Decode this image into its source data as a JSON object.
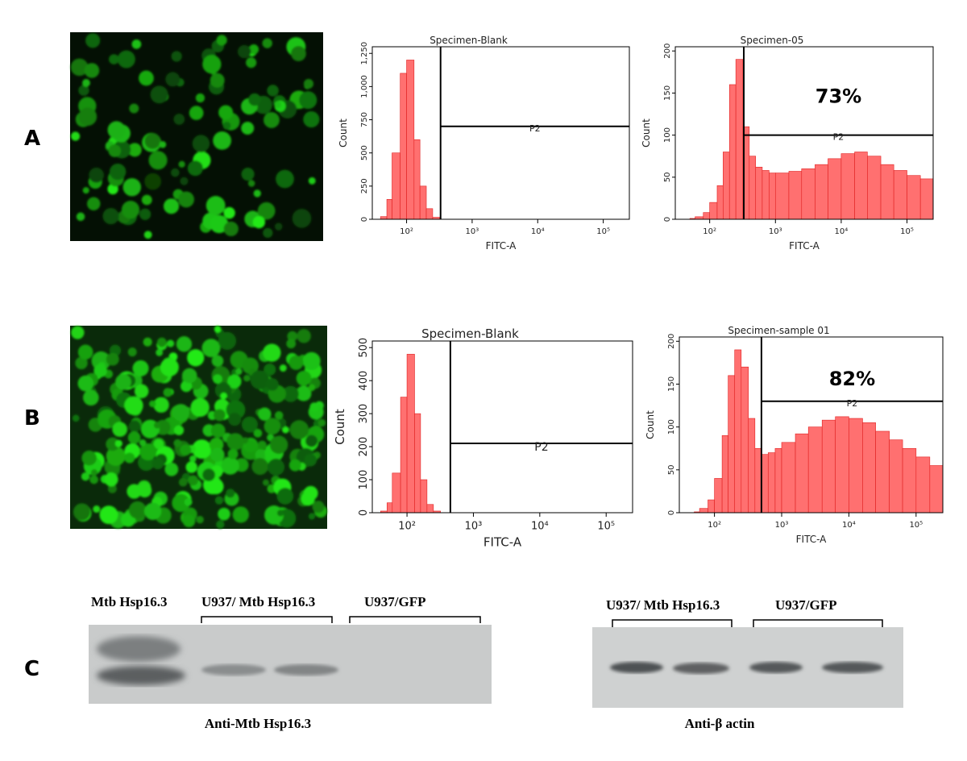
{
  "panel_labels": [
    "A",
    "B",
    "C"
  ],
  "chart_data": [
    {
      "type": "histogram",
      "title": "Specimen-Blank",
      "xlabel": "FITC-A",
      "ylabel": "Count",
      "color": "#ff7070",
      "log_x": true,
      "bins": [
        30,
        40,
        50,
        60,
        80,
        100,
        130,
        160,
        200,
        250,
        320,
        400,
        500,
        630,
        800,
        1000,
        1600,
        2500,
        4000,
        6300,
        10000,
        16000,
        25000,
        40000,
        63000,
        100000,
        160000,
        250000
      ],
      "counts": [
        0,
        20,
        150,
        500,
        1100,
        1200,
        600,
        250,
        80,
        15,
        0,
        0,
        0,
        0,
        0,
        0,
        0,
        0,
        0,
        0,
        0,
        0,
        0,
        0,
        0,
        0,
        0
      ],
      "xlim": [
        30,
        250000
      ],
      "ylim": [
        0,
        1300
      ],
      "xticks": [
        {
          "value": 100,
          "label": "10²"
        },
        {
          "value": 1000,
          "label": "10³"
        },
        {
          "value": 10000,
          "label": "10⁴"
        },
        {
          "value": 100000,
          "label": "10⁵"
        }
      ],
      "yticks": [
        0,
        250,
        500,
        750,
        {
          "value": 1000,
          "label": "1,000"
        },
        {
          "value": 1250,
          "label": "1,250"
        }
      ],
      "gate": {
        "x": 330,
        "y": 700,
        "label": "P2"
      }
    },
    {
      "type": "histogram",
      "title": "Specimen-05",
      "xlabel": "FITC-A",
      "ylabel": "Count",
      "color": "#ff7070",
      "log_x": true,
      "bins": [
        30,
        40,
        50,
        60,
        80,
        100,
        130,
        160,
        200,
        250,
        320,
        400,
        500,
        630,
        800,
        1000,
        1600,
        2500,
        4000,
        6300,
        10000,
        16000,
        25000,
        40000,
        63000,
        100000,
        160000,
        250000
      ],
      "counts": [
        0,
        0,
        1,
        3,
        8,
        20,
        40,
        80,
        160,
        190,
        110,
        75,
        62,
        58,
        55,
        55,
        57,
        60,
        65,
        72,
        78,
        80,
        75,
        65,
        58,
        52,
        48
      ],
      "xlim": [
        30,
        250000
      ],
      "ylim": [
        0,
        205
      ],
      "xticks": [
        {
          "value": 100,
          "label": "10²"
        },
        {
          "value": 1000,
          "label": "10³"
        },
        {
          "value": 10000,
          "label": "10⁴"
        },
        {
          "value": 100000,
          "label": "10⁵"
        }
      ],
      "yticks": [
        0,
        50,
        100,
        150,
        200
      ],
      "gate": {
        "x": 330,
        "y": 100,
        "label": "P2"
      },
      "annotation": "73%"
    },
    {
      "type": "histogram",
      "title": "Specimen-Blank",
      "xlabel": "FITC-A",
      "ylabel": "Count",
      "color": "#ff7070",
      "log_x": true,
      "bins": [
        30,
        40,
        50,
        60,
        80,
        100,
        130,
        160,
        200,
        250,
        320,
        400,
        500,
        630,
        800,
        1000,
        1600,
        2500,
        4000,
        6300,
        10000,
        16000,
        25000,
        40000,
        63000,
        100000,
        160000,
        250000
      ],
      "counts": [
        0,
        5,
        30,
        120,
        350,
        480,
        300,
        100,
        25,
        5,
        0,
        0,
        0,
        0,
        0,
        0,
        0,
        0,
        0,
        0,
        0,
        0,
        0,
        0,
        0,
        0,
        0
      ],
      "xlim": [
        30,
        250000
      ],
      "ylim": [
        0,
        520
      ],
      "xticks": [
        {
          "value": 100,
          "label": "10²"
        },
        {
          "value": 1000,
          "label": "10³"
        },
        {
          "value": 10000,
          "label": "10⁴"
        },
        {
          "value": 100000,
          "label": "10⁵"
        }
      ],
      "yticks": [
        0,
        100,
        200,
        300,
        400,
        500
      ],
      "gate": {
        "x": 450,
        "y": 210,
        "label": "P2"
      }
    },
    {
      "type": "histogram",
      "title": "Specimen-sample 01",
      "xlabel": "FITC-A",
      "ylabel": "Count",
      "color": "#ff7070",
      "log_x": true,
      "bins": [
        30,
        40,
        50,
        60,
        80,
        100,
        130,
        160,
        200,
        250,
        320,
        400,
        500,
        630,
        800,
        1000,
        1600,
        2500,
        4000,
        6300,
        10000,
        16000,
        25000,
        40000,
        63000,
        100000,
        160000,
        250000
      ],
      "counts": [
        0,
        0,
        1,
        5,
        15,
        40,
        90,
        160,
        190,
        170,
        110,
        75,
        68,
        70,
        75,
        82,
        92,
        100,
        108,
        112,
        110,
        105,
        95,
        85,
        75,
        65,
        55
      ],
      "xlim": [
        30,
        250000
      ],
      "ylim": [
        0,
        205
      ],
      "xticks": [
        {
          "value": 100,
          "label": "10²"
        },
        {
          "value": 1000,
          "label": "10³"
        },
        {
          "value": 10000,
          "label": "10⁴"
        },
        {
          "value": 100000,
          "label": "10⁵"
        }
      ],
      "yticks": [
        0,
        50,
        100,
        150,
        200
      ],
      "gate": {
        "x": 500,
        "y": 130,
        "label": "P2"
      },
      "annotation": "82%"
    }
  ],
  "blots": [
    {
      "lane_labels": [
        "Mtb Hsp16.3",
        "U937/ Mtb Hsp16.3",
        "U937/GFP"
      ],
      "caption": "Anti-Mtb Hsp16.3"
    },
    {
      "lane_labels": [
        "U937/ Mtb Hsp16.3",
        "U937/GFP"
      ],
      "caption": "Anti-β actin"
    }
  ]
}
